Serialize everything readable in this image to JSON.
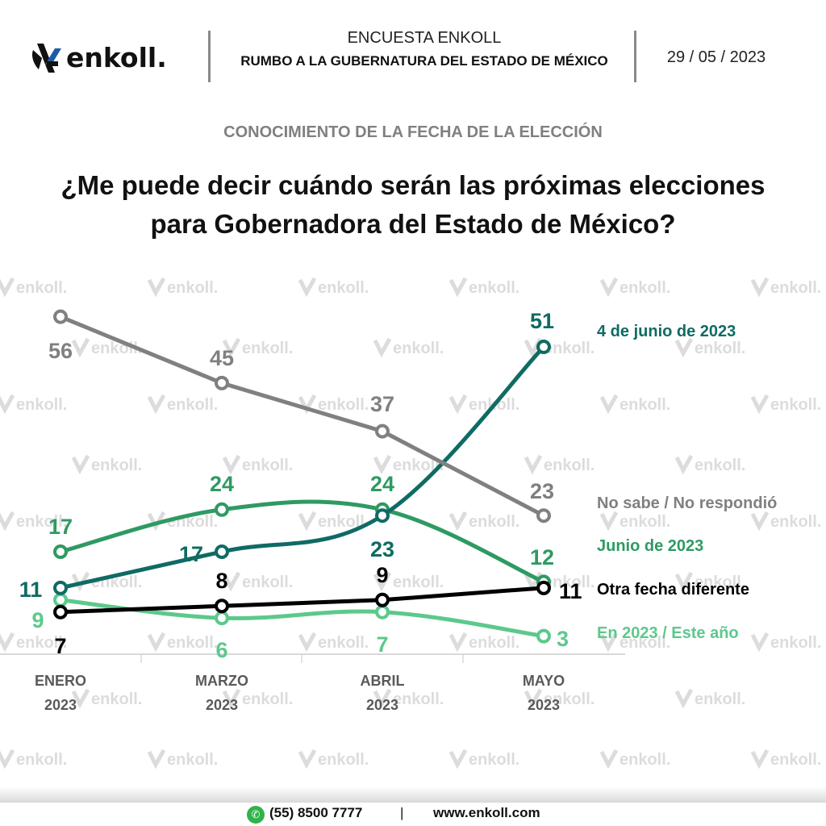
{
  "header": {
    "logo_text": "enkoll.",
    "survey_title": "ENCUESTA ENKOLL",
    "survey_subtitle": "RUMBO A LA GUBERNATURA DEL ESTADO DE MÉXICO",
    "date": "29 / 05 / 2023"
  },
  "section_title": "CONOCIMIENTO DE LA FECHA DE LA ELECCIÓN",
  "question_line1": "¿Me puede decir cuándo serán las próximas elecciones",
  "question_line2": "para Gobernadora del Estado de México?",
  "watermark_text": "enkoll.",
  "chart_data": {
    "type": "line",
    "title": "¿Me puede decir cuándo serán las próximas elecciones para Gobernadora del Estado de México?",
    "xlabel": "",
    "ylabel": "",
    "categories": [
      {
        "month": "ENERO",
        "year": "2023"
      },
      {
        "month": "MARZO",
        "year": "2023"
      },
      {
        "month": "ABRIL",
        "year": "2023"
      },
      {
        "month": "MAYO",
        "year": "2023"
      }
    ],
    "ylim": [
      0,
      60
    ],
    "grid": false,
    "legend": "right (direct labels)",
    "series": [
      {
        "name": "4 de junio de 2023",
        "color": "#0f6b63",
        "values": [
          11,
          17,
          23,
          51
        ],
        "smooth": true
      },
      {
        "name": "No sabe / No respondió",
        "color": "#808080",
        "values": [
          56,
          45,
          37,
          23
        ],
        "smooth": false
      },
      {
        "name": "Junio de 2023",
        "color": "#2e9a63",
        "values": [
          17,
          24,
          24,
          12
        ],
        "smooth": true
      },
      {
        "name": "Otra fecha diferente",
        "color": "#000000",
        "values": [
          7,
          8,
          9,
          11
        ],
        "smooth": false
      },
      {
        "name": "En 2023 / Este año",
        "color": "#5cc98c",
        "values": [
          9,
          6,
          7,
          3
        ],
        "smooth": true
      }
    ]
  },
  "footer": {
    "phone_icon": "whatsapp-icon",
    "phone": "(55) 8500 7777",
    "separator": "|",
    "website": "www.enkoll.com"
  }
}
